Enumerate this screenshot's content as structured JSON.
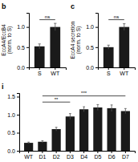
{
  "chart_data": [
    {
      "type": "bar",
      "title": "b",
      "categories": [
        "S",
        "WT"
      ],
      "values": [
        0.52,
        1.0
      ],
      "error": [
        0.06,
        0.09
      ],
      "color": "#1a1a1a",
      "ylabel": "EccA4/EccB4\n(norm. to S)",
      "ylim": [
        0,
        1.35
      ],
      "yticks": [
        {
          "value": 0.0,
          "label": "0.0"
        },
        {
          "value": 0.5,
          "label": "0.5"
        },
        {
          "value": 1.0,
          "label": "1.0"
        }
      ],
      "annotations": [
        {
          "text": "ns",
          "from": "S",
          "to": "WT",
          "y": 1.18
        }
      ]
    },
    {
      "type": "bar",
      "title": "c",
      "categories": [
        "S",
        "WT"
      ],
      "values": [
        0.5,
        1.0
      ],
      "error": [
        0.05,
        0.08
      ],
      "color": "#1a1a1a",
      "ylabel": "EccA4 secretion\n(norm. to S)",
      "ylim": [
        0,
        1.35
      ],
      "yticks": [
        {
          "value": 0.0,
          "label": "0.0"
        },
        {
          "value": 0.5,
          "label": "0.5"
        },
        {
          "value": 1.0,
          "label": "1.0"
        }
      ],
      "annotations": [
        {
          "text": "ns",
          "from": "S",
          "to": "WT",
          "y": 1.18
        }
      ]
    },
    {
      "type": "bar",
      "title": "i",
      "categories": [
        "WT",
        "D1",
        "D2",
        "D3",
        "D4",
        "D5",
        "D6",
        "D7"
      ],
      "values": [
        0.22,
        0.25,
        0.6,
        0.95,
        1.15,
        1.2,
        1.18,
        1.1
      ],
      "error": [
        0.02,
        0.03,
        0.05,
        0.08,
        0.07,
        0.08,
        0.09,
        0.07
      ],
      "color": "#1a1a1a",
      "ylim": [
        0,
        1.6
      ],
      "yticks": [
        {
          "value": 0.0,
          "label": "0.0"
        },
        {
          "value": 0.5,
          "label": "0.5"
        },
        {
          "value": 1.0,
          "label": "1.0"
        },
        {
          "value": 1.5,
          "label": "1.5"
        }
      ],
      "annotations": [
        {
          "text": "**",
          "from": "D1",
          "to": "D3",
          "y": 1.35
        },
        {
          "text": "***",
          "from": "D1",
          "to": "D7",
          "y": 1.52
        }
      ]
    }
  ]
}
